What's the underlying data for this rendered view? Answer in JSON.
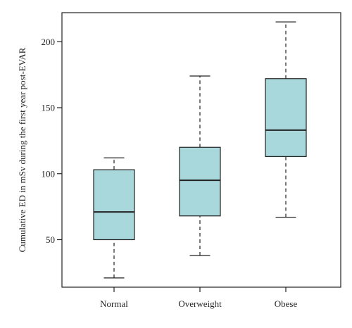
{
  "chart_data": {
    "type": "box",
    "title": "",
    "xlabel": "",
    "ylabel": "Cumulative ED in mSv during the first year post-EVAR",
    "ylim": [
      14,
      222
    ],
    "yticks": [
      50,
      100,
      150,
      200
    ],
    "grid": false,
    "box_fill": "#a8d8db",
    "stroke_color": "#222222",
    "categories": [
      "Normal",
      "Overweight",
      "Obese"
    ],
    "boxes": [
      {
        "category": "Normal",
        "min": 21,
        "q1": 50,
        "median": 71,
        "q3": 103,
        "max": 112
      },
      {
        "category": "Overweight",
        "min": 38,
        "q1": 68,
        "median": 95,
        "q3": 120,
        "max": 174
      },
      {
        "category": "Obese",
        "min": 67,
        "q1": 113,
        "median": 133,
        "q3": 172,
        "max": 215
      }
    ]
  }
}
